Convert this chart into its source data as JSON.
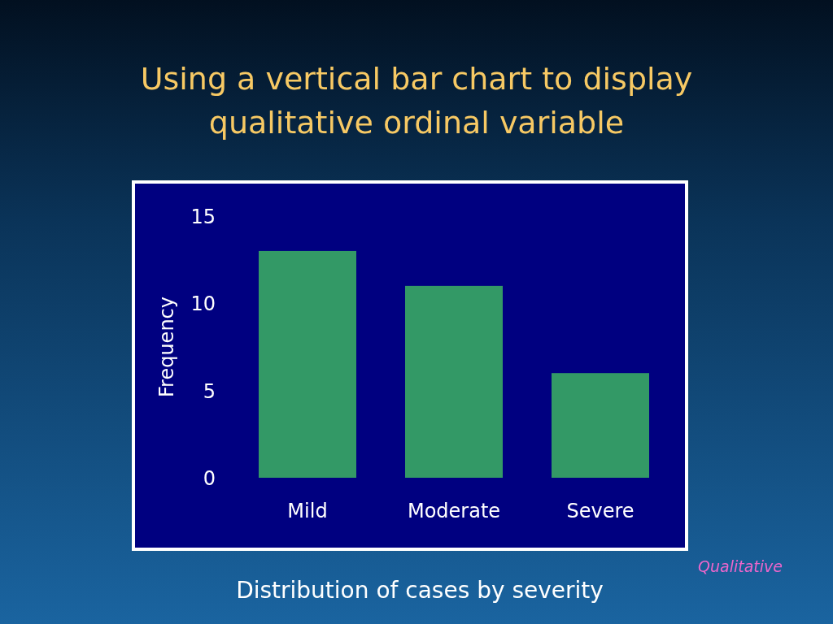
{
  "chart_data": {
    "type": "bar",
    "title": "Using a vertical bar chart to display qualitative ordinal variable",
    "ylabel": "Frequency",
    "categories": [
      "Mild",
      "Moderate",
      "Severe"
    ],
    "values": [
      13,
      11,
      6
    ],
    "color": "#339966",
    "ylim": [
      0,
      15
    ],
    "yticks": [
      0,
      5,
      10,
      15
    ],
    "annotations": [
      "Distribution of cases by severity",
      "Qualitative"
    ]
  }
}
